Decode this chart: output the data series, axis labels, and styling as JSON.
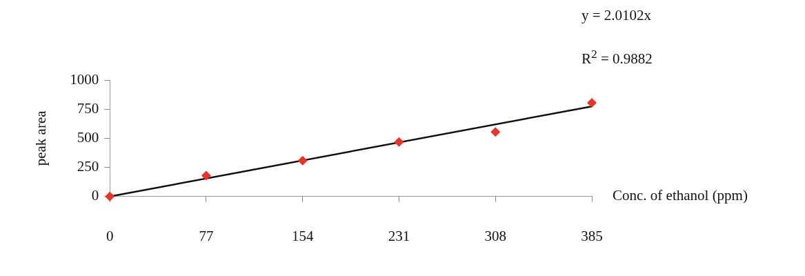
{
  "chart_data": {
    "type": "scatter",
    "xlabel": "Conc. of ethanol (ppm)",
    "ylabel": "peak area",
    "xlim": [
      0,
      385
    ],
    "xticks": [
      0,
      77,
      154,
      231,
      308,
      385
    ],
    "ylim": [
      0,
      1000
    ],
    "yticks": [
      0,
      250,
      500,
      750,
      1000
    ],
    "grid": false,
    "legend": false,
    "marker": "diamond",
    "series": [
      {
        "color": "#e8352b",
        "x": [
          0,
          77,
          154,
          231,
          308,
          385
        ],
        "values": [
          0,
          180,
          309,
          469,
          554,
          804
        ]
      },
      {
        "type": "line",
        "color": "#111111",
        "marker": "none",
        "x": [
          0,
          385
        ],
        "values": [
          0,
          774
        ]
      }
    ],
    "annotations": [
      "y = 2.0102x",
      "R$^{2}$ = 0.9882"
    ]
  }
}
